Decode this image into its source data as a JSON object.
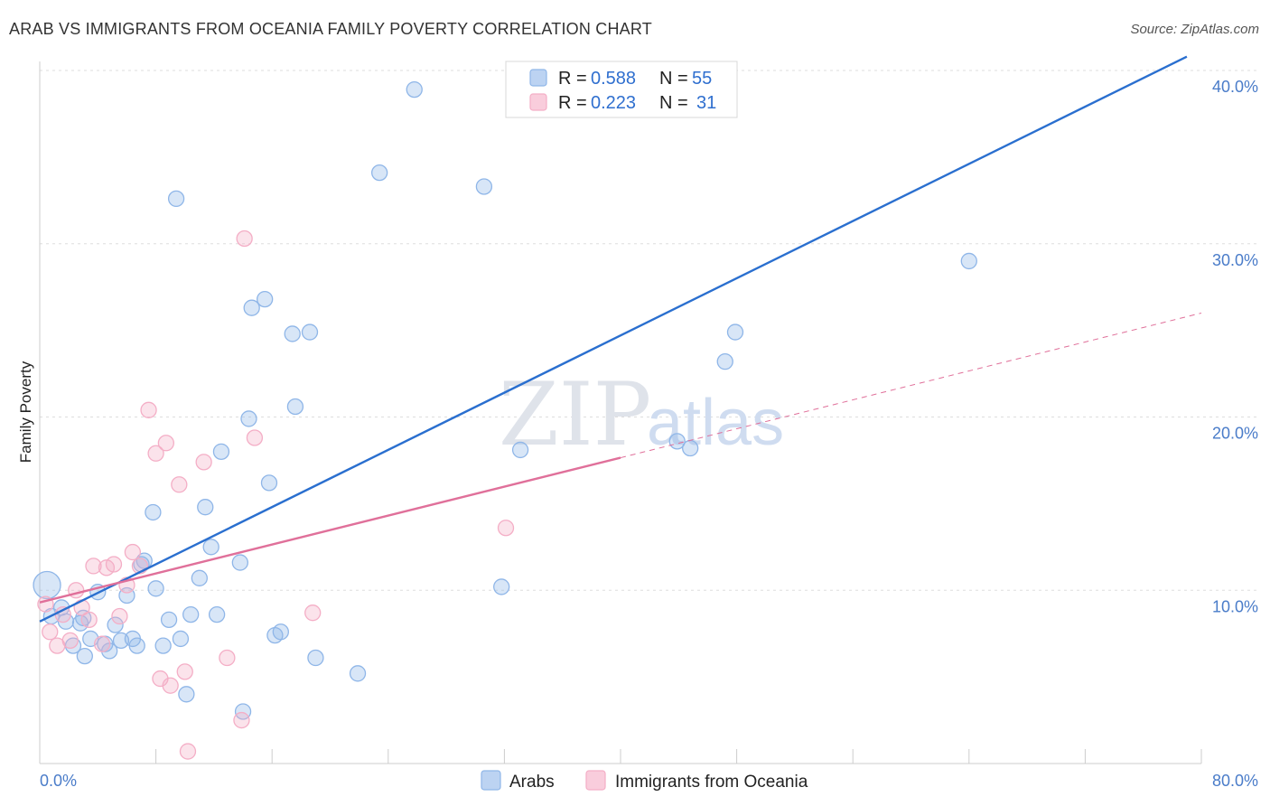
{
  "title": "ARAB VS IMMIGRANTS FROM OCEANIA FAMILY POVERTY CORRELATION CHART",
  "source": "Source: ZipAtlas.com",
  "watermark": {
    "zip": "ZIP",
    "atlas": "atlas"
  },
  "chart_data": {
    "type": "scatter",
    "ylabel": "Family Poverty",
    "xlim": [
      0,
      80
    ],
    "ylim": [
      0,
      40
    ],
    "x_tick_labels": [
      {
        "value": 0,
        "label": "0.0%"
      },
      {
        "value": 80,
        "label": "80.0%"
      }
    ],
    "y_tick_labels": [
      {
        "value": 10,
        "label": "10.0%"
      },
      {
        "value": 20,
        "label": "20.0%"
      },
      {
        "value": 30,
        "label": "30.0%"
      },
      {
        "value": 40,
        "label": "40.0%"
      }
    ],
    "legend": [
      {
        "r_label": "R =",
        "r": "0.588",
        "n_label": "N =",
        "n": "55"
      },
      {
        "r_label": "R =",
        "r": "0.223",
        "n_label": "N =",
        "n": "31"
      }
    ],
    "series": [
      {
        "name": "Arabs",
        "color": "#8fb6e8",
        "line_color": "#2a6fcf",
        "trend": {
          "x0": 0,
          "y0": 8.2,
          "x1": 79,
          "y1": 40.8,
          "dash_from": null
        },
        "points": [
          [
            0.5,
            10.3
          ],
          [
            0.8,
            8.5
          ],
          [
            1.5,
            9.0
          ],
          [
            1.8,
            8.2
          ],
          [
            2.3,
            6.8
          ],
          [
            2.8,
            8.1
          ],
          [
            3.1,
            6.2
          ],
          [
            3.5,
            7.2
          ],
          [
            4.0,
            9.9
          ],
          [
            4.5,
            6.9
          ],
          [
            4.8,
            6.5
          ],
          [
            5.2,
            8.0
          ],
          [
            5.6,
            7.1
          ],
          [
            6.0,
            9.7
          ],
          [
            6.4,
            7.2
          ],
          [
            6.7,
            6.8
          ],
          [
            7.2,
            11.7
          ],
          [
            7.8,
            14.5
          ],
          [
            8.0,
            10.1
          ],
          [
            8.5,
            6.8
          ],
          [
            8.9,
            8.3
          ],
          [
            9.7,
            7.2
          ],
          [
            10.1,
            4.0
          ],
          [
            10.4,
            8.6
          ],
          [
            11.0,
            10.7
          ],
          [
            11.4,
            14.8
          ],
          [
            11.8,
            12.5
          ],
          [
            12.2,
            8.6
          ],
          [
            12.5,
            18.0
          ],
          [
            13.8,
            11.6
          ],
          [
            14.0,
            3.0
          ],
          [
            14.4,
            19.9
          ],
          [
            14.6,
            26.3
          ],
          [
            15.5,
            26.8
          ],
          [
            15.8,
            16.2
          ],
          [
            16.2,
            7.4
          ],
          [
            16.6,
            7.6
          ],
          [
            17.4,
            24.8
          ],
          [
            17.6,
            20.6
          ],
          [
            18.6,
            24.9
          ],
          [
            19.0,
            6.1
          ],
          [
            21.9,
            5.2
          ],
          [
            23.4,
            34.1
          ],
          [
            25.8,
            38.9
          ],
          [
            30.6,
            33.3
          ],
          [
            31.8,
            10.2
          ],
          [
            33.1,
            18.1
          ],
          [
            43.9,
            18.6
          ],
          [
            44.8,
            18.2
          ],
          [
            47.2,
            23.2
          ],
          [
            47.9,
            24.9
          ],
          [
            64.0,
            29.0
          ],
          [
            9.4,
            32.6
          ],
          [
            3.0,
            8.4
          ],
          [
            7.0,
            11.5
          ]
        ]
      },
      {
        "name": "Immigrants from Oceania",
        "color": "#f4aec6",
        "line_color": "#e0709a",
        "trend": {
          "x0": 0,
          "y0": 9.3,
          "x1": 80,
          "y1": 26.0,
          "dash_from": 40
        },
        "points": [
          [
            0.4,
            9.2
          ],
          [
            0.7,
            7.6
          ],
          [
            1.2,
            6.8
          ],
          [
            1.6,
            8.6
          ],
          [
            2.1,
            7.1
          ],
          [
            2.5,
            10.0
          ],
          [
            2.9,
            9.0
          ],
          [
            3.4,
            8.3
          ],
          [
            3.7,
            11.4
          ],
          [
            4.3,
            6.9
          ],
          [
            4.6,
            11.3
          ],
          [
            5.1,
            11.5
          ],
          [
            5.5,
            8.5
          ],
          [
            6.0,
            10.3
          ],
          [
            6.4,
            12.2
          ],
          [
            6.9,
            11.4
          ],
          [
            7.5,
            20.4
          ],
          [
            8.0,
            17.9
          ],
          [
            8.3,
            4.9
          ],
          [
            8.7,
            18.5
          ],
          [
            9.0,
            4.5
          ],
          [
            9.6,
            16.1
          ],
          [
            10.0,
            5.3
          ],
          [
            10.2,
            0.7
          ],
          [
            11.3,
            17.4
          ],
          [
            12.9,
            6.1
          ],
          [
            13.9,
            2.5
          ],
          [
            14.1,
            30.3
          ],
          [
            14.8,
            18.8
          ],
          [
            18.8,
            8.7
          ],
          [
            32.1,
            13.6
          ]
        ]
      }
    ]
  }
}
